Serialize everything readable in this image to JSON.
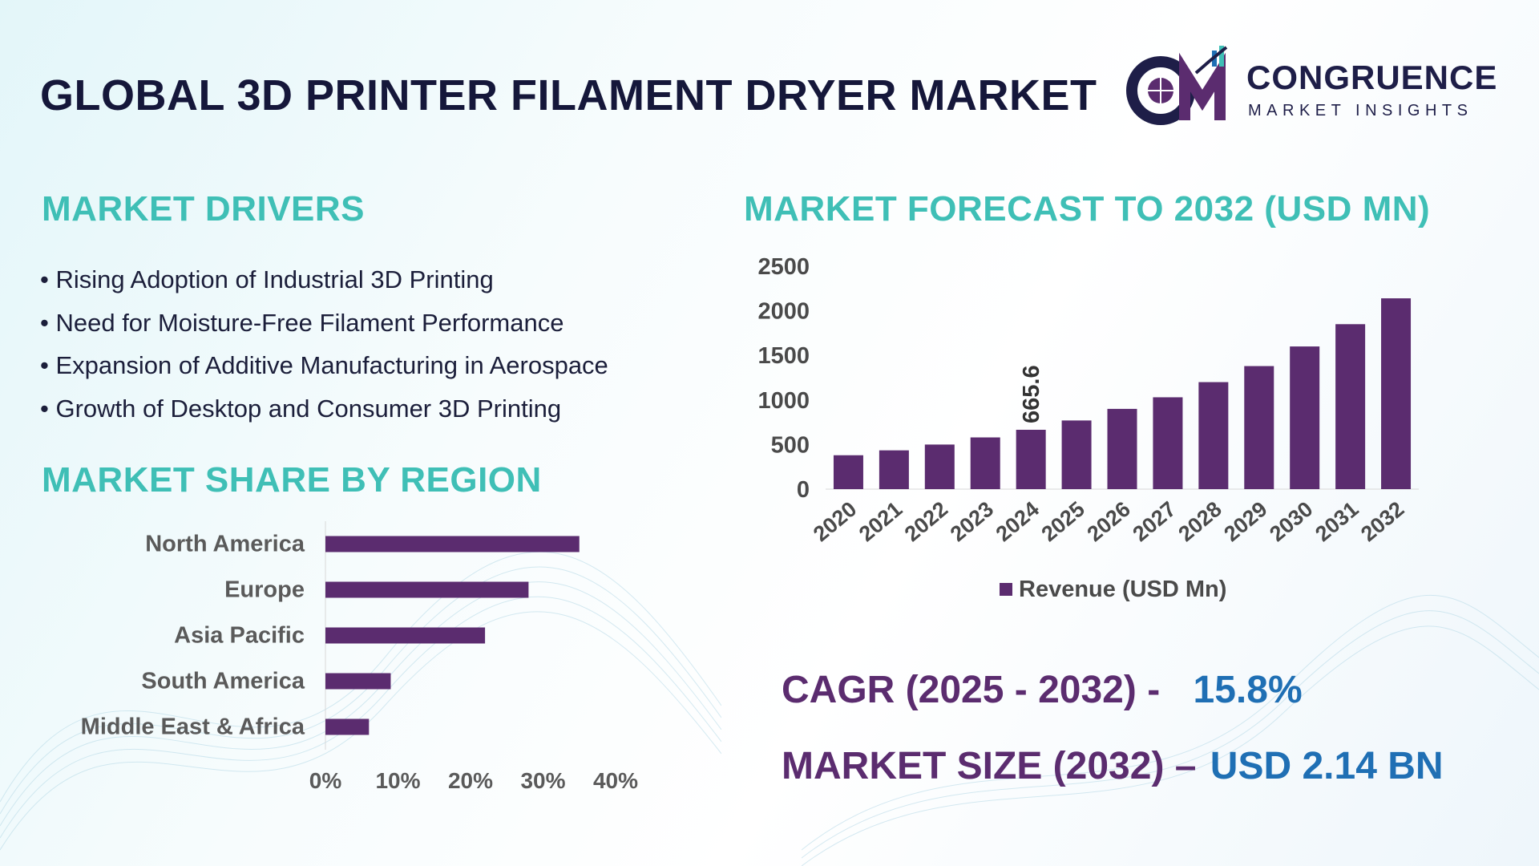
{
  "title": "GLOBAL 3D PRINTER FILAMENT DRYER MARKET",
  "logo": {
    "line1": "CONGRUENCE",
    "line2": "MARKET INSIGHTS"
  },
  "drivers": {
    "heading": "MARKET DRIVERS",
    "items": [
      "Rising Adoption of Industrial 3D Printing",
      "Need for Moisture-Free Filament Performance",
      "Expansion of Additive Manufacturing in Aerospace",
      "Growth of Desktop and Consumer 3D Printing"
    ]
  },
  "region": {
    "heading": "MARKET SHARE BY REGION"
  },
  "forecast": {
    "heading": "MARKET FORECAST TO 2032 (USD MN)"
  },
  "kpis": {
    "cagr_label": "CAGR (2025 - 2032) -",
    "cagr_value": "15.8%",
    "size_label": "MARKET SIZE (2032) –",
    "size_value": "USD 2.14 BN"
  },
  "colors": {
    "bar": "#5b2c6f",
    "heading": "#3fbfb6",
    "kpi_label": "#5b2c6f",
    "kpi_value": "#1f6fb4"
  },
  "chart_data": [
    {
      "type": "bar",
      "orientation": "horizontal",
      "categories": [
        "North America",
        "Europe",
        "Asia Pacific",
        "South America",
        "Middle East & Africa"
      ],
      "values": [
        35,
        28,
        22,
        9,
        6
      ],
      "unit": "%",
      "xlim": [
        0,
        40
      ],
      "xticks": [
        "0%",
        "10%",
        "20%",
        "30%",
        "40%"
      ],
      "grid": false
    },
    {
      "type": "bar",
      "categories": [
        "2020",
        "2021",
        "2022",
        "2023",
        "2024",
        "2025",
        "2026",
        "2027",
        "2028",
        "2029",
        "2030",
        "2031",
        "2032"
      ],
      "series": [
        {
          "name": "Revenue (USD Mn)",
          "values": [
            380,
            435,
            500,
            580,
            665.6,
            770,
            900,
            1030,
            1200,
            1380,
            1600,
            1850,
            2140
          ]
        }
      ],
      "data_labels": [
        {
          "index": 4,
          "text": "665.6"
        }
      ],
      "ylim": [
        0,
        2500
      ],
      "yticks": [
        "0",
        "500",
        "1000",
        "1500",
        "2000",
        "2500"
      ],
      "legend": "bottom",
      "grid": false
    }
  ]
}
